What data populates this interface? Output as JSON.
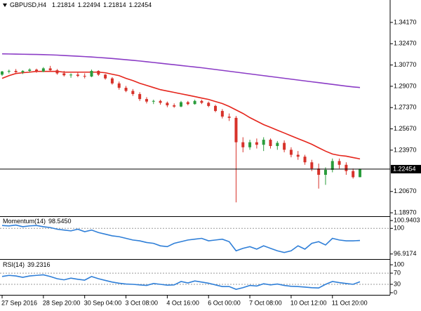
{
  "chart_data": [
    {
      "type": "candlestick",
      "title": "GBPUSD,H4",
      "categories": [
        "27 Sep 2016",
        null,
        null,
        null,
        null,
        null,
        "28 Sep 20:00",
        null,
        null,
        null,
        null,
        null,
        "30 Sep 04:00",
        null,
        null,
        null,
        null,
        null,
        "3 Oct 08:00",
        null,
        null,
        null,
        null,
        null,
        "4 Oct 16:00",
        null,
        null,
        null,
        null,
        null,
        "6 Oct 00:00",
        null,
        null,
        null,
        null,
        null,
        "7 Oct 08:00",
        null,
        null,
        null,
        null,
        null,
        "10 Oct 12:00",
        null,
        null,
        null,
        null,
        null,
        "11 Oct 20:00",
        null,
        null,
        null,
        null
      ],
      "open": [
        1.3,
        1.3025,
        1.303,
        1.302,
        1.303,
        1.304,
        1.3025,
        1.305,
        1.3035,
        1.301,
        1.2995,
        1.3,
        1.299,
        1.2985,
        1.303,
        1.3,
        1.297,
        1.293,
        1.2895,
        1.287,
        1.2845,
        1.2805,
        1.2785,
        1.279,
        1.2775,
        1.2755,
        1.2745,
        1.278,
        1.2765,
        1.279,
        1.2775,
        1.275,
        1.271,
        1.2665,
        1.2655,
        1.246,
        1.242,
        1.246,
        1.244,
        1.248,
        1.243,
        1.2455,
        1.24,
        1.236,
        1.2345,
        1.23,
        1.225,
        1.22,
        1.224,
        1.231,
        1.228,
        1.223,
        1.21814
      ],
      "high": [
        1.303,
        1.304,
        1.3045,
        1.3035,
        1.305,
        1.3048,
        1.306,
        1.307,
        1.3045,
        1.303,
        1.301,
        1.3015,
        1.301,
        1.304,
        1.3035,
        1.3005,
        1.298,
        1.2945,
        1.291,
        1.2885,
        1.286,
        1.282,
        1.28,
        1.28,
        1.2785,
        1.277,
        1.279,
        1.279,
        1.28,
        1.28,
        1.2785,
        1.276,
        1.2725,
        1.269,
        1.267,
        1.25,
        1.248,
        1.249,
        1.25,
        1.249,
        1.247,
        1.2475,
        1.242,
        1.239,
        1.236,
        1.232,
        1.229,
        1.226,
        1.233,
        1.233,
        1.23,
        1.225,
        1.22494
      ],
      "low": [
        1.299,
        1.301,
        1.3015,
        1.3005,
        1.302,
        1.3015,
        1.302,
        1.303,
        1.3,
        1.2985,
        1.2975,
        1.298,
        1.297,
        1.298,
        1.299,
        1.296,
        1.292,
        1.288,
        1.286,
        1.283,
        1.279,
        1.277,
        1.2765,
        1.276,
        1.274,
        1.2735,
        1.274,
        1.2755,
        1.276,
        1.2765,
        1.274,
        1.27,
        1.265,
        1.263,
        1.198,
        1.238,
        1.24,
        1.241,
        1.239,
        1.241,
        1.24,
        1.238,
        1.234,
        1.232,
        1.228,
        1.223,
        1.209,
        1.212,
        1.222,
        1.225,
        1.22,
        1.217,
        1.21814
      ],
      "close": [
        1.3025,
        1.303,
        1.302,
        1.303,
        1.304,
        1.3025,
        1.305,
        1.3035,
        1.301,
        1.2995,
        1.3,
        1.299,
        1.2985,
        1.303,
        1.3,
        1.297,
        1.293,
        1.2895,
        1.287,
        1.2845,
        1.2805,
        1.2785,
        1.279,
        1.2775,
        1.2755,
        1.2745,
        1.278,
        1.2765,
        1.279,
        1.2775,
        1.275,
        1.271,
        1.2665,
        1.2655,
        1.246,
        1.242,
        1.246,
        1.244,
        1.248,
        1.243,
        1.2455,
        1.24,
        1.236,
        1.2345,
        1.23,
        1.225,
        1.22,
        1.224,
        1.231,
        1.228,
        1.223,
        1.2181,
        1.22454
      ],
      "up_color": "#2a9d3c",
      "down_color": "#d7322a",
      "overlays": [
        {
          "color": "#e5251c",
          "values": [
            1.297,
            1.2992,
            1.3009,
            1.3015,
            1.302,
            1.3026,
            1.3026,
            1.3026,
            1.3026,
            1.302,
            1.302,
            1.302,
            1.302,
            1.302,
            1.302,
            1.3015,
            1.3003,
            1.2992,
            1.297,
            1.2953,
            1.2931,
            1.2914,
            1.2897,
            1.288,
            1.2869,
            1.2858,
            1.2847,
            1.2836,
            1.2825,
            1.2813,
            1.2802,
            1.2785,
            1.2769,
            1.2746,
            1.2718,
            1.269,
            1.2657,
            1.2629,
            1.2601,
            1.2579,
            1.2556,
            1.2534,
            1.2511,
            1.2489,
            1.2467,
            1.2444,
            1.2416,
            1.2389,
            1.2366,
            1.2355,
            1.2349,
            1.2338,
            1.2327
          ]
        },
        {
          "color": "#8b3cc6",
          "values": [
            1.3166,
            1.3165,
            1.3164,
            1.3163,
            1.3162,
            1.3161,
            1.316,
            1.3158,
            1.3156,
            1.3153,
            1.315,
            1.3147,
            1.3144,
            1.3141,
            1.3137,
            1.3133,
            1.3129,
            1.3124,
            1.3119,
            1.3114,
            1.3109,
            1.3103,
            1.3097,
            1.3091,
            1.3085,
            1.3079,
            1.3073,
            1.3067,
            1.3061,
            1.3055,
            1.3048,
            1.3041,
            1.3034,
            1.3027,
            1.302,
            1.3013,
            1.3006,
            1.2999,
            1.2992,
            1.2985,
            1.2978,
            1.2971,
            1.2964,
            1.2957,
            1.295,
            1.2943,
            1.2936,
            1.2929,
            1.2922,
            1.2915,
            1.2908,
            1.2902,
            1.2897
          ]
        }
      ],
      "current_price": 1.22454,
      "ylim": [
        1.1875,
        1.3596
      ],
      "yticks": [
        {
          "value": 1.3417,
          "label": "1.34170"
        },
        {
          "value": 1.3247,
          "label": "1.32470"
        },
        {
          "value": 1.3077,
          "label": "1.30770"
        },
        {
          "value": 1.2907,
          "label": "1.29070"
        },
        {
          "value": 1.2737,
          "label": "1.27370"
        },
        {
          "value": 1.2567,
          "label": "1.25670"
        },
        {
          "value": 1.2397,
          "label": "1.23970"
        },
        {
          "value": 1.2067,
          "label": "1.20670"
        },
        {
          "value": 1.1897,
          "label": "1.18970"
        }
      ]
    },
    {
      "type": "line",
      "series": [
        {
          "name": "Momentum(14)",
          "color": "#2f7fd8",
          "values": [
            100.35,
            100.3,
            100.4,
            100.2,
            100.3,
            100.35,
            100.2,
            100.1,
            99.9,
            99.8,
            99.7,
            99.9,
            99.6,
            99.8,
            99.5,
            99.3,
            99.1,
            99.0,
            98.8,
            98.6,
            98.5,
            98.3,
            98.2,
            97.9,
            97.8,
            98.2,
            98.4,
            98.6,
            98.7,
            98.8,
            98.5,
            98.6,
            98.7,
            98.4,
            97.3,
            97.6,
            97.8,
            97.5,
            97.9,
            97.6,
            97.3,
            97.1,
            97.3,
            97.9,
            97.5,
            98.2,
            98.4,
            98.0,
            98.8,
            98.6,
            98.5,
            98.5,
            98.545
          ]
        }
      ],
      "readout": "98.5450",
      "ylim": [
        96.392,
        101.378
      ],
      "yticks": [
        100.9403,
        100,
        96.9174
      ],
      "grid": "inner"
    },
    {
      "type": "line",
      "series": [
        {
          "name": "RSI(14)",
          "color": "#2f7fd8",
          "values": [
            58,
            62,
            60,
            55,
            60,
            62,
            64,
            58,
            50,
            46,
            52,
            48,
            45,
            58,
            50,
            44,
            38,
            34,
            31,
            30,
            28,
            26,
            33,
            30,
            27,
            28,
            40,
            35,
            42,
            38,
            34,
            28,
            22,
            22,
            12,
            18,
            26,
            24,
            32,
            28,
            31,
            26,
            23,
            22,
            20,
            18,
            17,
            30,
            40,
            36,
            33,
            30,
            39.2316
          ]
        }
      ],
      "readout": "39.2316",
      "ylim": [
        -7.7,
        117.9
      ],
      "yticks": [
        100,
        70,
        30,
        0
      ],
      "grid": "inner"
    }
  ]
}
